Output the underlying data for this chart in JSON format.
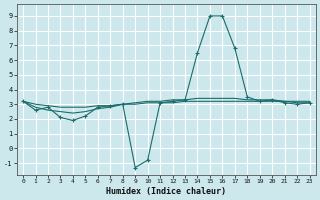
{
  "title": "",
  "xlabel": "Humidex (Indice chaleur)",
  "ylabel": "",
  "background_color": "#cce8ec",
  "grid_color": "#ffffff",
  "line_color": "#1a6b6b",
  "xlim": [
    -0.5,
    23.5
  ],
  "ylim": [
    -1.8,
    9.8
  ],
  "xticks": [
    0,
    1,
    2,
    3,
    4,
    5,
    6,
    7,
    8,
    9,
    10,
    11,
    12,
    13,
    14,
    15,
    16,
    17,
    18,
    19,
    20,
    21,
    22,
    23
  ],
  "yticks": [
    -1,
    0,
    1,
    2,
    3,
    4,
    5,
    6,
    7,
    8,
    9
  ],
  "series": [
    {
      "x": [
        0,
        1,
        2,
        3,
        4,
        5,
        6,
        7,
        8,
        9,
        10,
        11,
        12,
        13,
        14,
        15,
        16,
        17,
        18,
        19,
        20,
        21,
        22,
        23
      ],
      "y": [
        3.2,
        2.6,
        2.8,
        2.1,
        1.9,
        2.2,
        2.8,
        2.9,
        3.0,
        -1.3,
        -0.8,
        3.1,
        3.2,
        3.3,
        6.5,
        9.0,
        9.0,
        6.8,
        3.5,
        3.2,
        3.3,
        3.1,
        3.0,
        3.1
      ],
      "marker": "+"
    },
    {
      "x": [
        0,
        1,
        2,
        3,
        4,
        5,
        6,
        7,
        8,
        9,
        10,
        11,
        12,
        13,
        14,
        15,
        16,
        17,
        18,
        19,
        20,
        21,
        22,
        23
      ],
      "y": [
        3.2,
        2.8,
        2.6,
        2.5,
        2.4,
        2.5,
        2.7,
        2.8,
        3.0,
        3.1,
        3.2,
        3.2,
        3.3,
        3.3,
        3.4,
        3.4,
        3.4,
        3.4,
        3.3,
        3.3,
        3.3,
        3.2,
        3.2,
        3.2
      ],
      "marker": null
    },
    {
      "x": [
        0,
        1,
        2,
        3,
        4,
        5,
        6,
        7,
        8,
        9,
        10,
        11,
        12,
        13,
        14,
        15,
        16,
        17,
        18,
        19,
        20,
        21,
        22,
        23
      ],
      "y": [
        3.2,
        3.0,
        2.9,
        2.8,
        2.8,
        2.8,
        2.9,
        2.9,
        3.0,
        3.0,
        3.1,
        3.1,
        3.1,
        3.2,
        3.2,
        3.2,
        3.2,
        3.2,
        3.2,
        3.2,
        3.2,
        3.2,
        3.1,
        3.1
      ],
      "marker": null
    }
  ]
}
